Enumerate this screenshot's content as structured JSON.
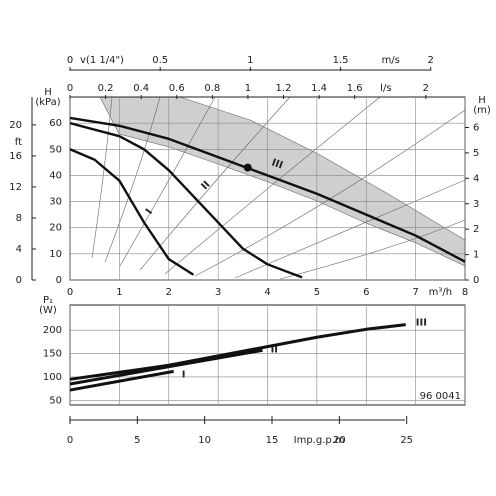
{
  "chart_data": [
    {
      "type": "line",
      "ylabel": "H",
      "yunit": "(kPa)",
      "y2label": "H",
      "y2unit": "(m)",
      "y3label": "ft",
      "xlabel": "m³/h",
      "xlim": [
        0,
        8
      ],
      "xticks": [
        0,
        1,
        2,
        3,
        4,
        5,
        6,
        7,
        8
      ],
      "ylim": [
        0,
        70
      ],
      "yticks": [
        0,
        10,
        20,
        30,
        40,
        50,
        60
      ],
      "y2lim": [
        0,
        7.2
      ],
      "y2ticks": [
        0,
        1,
        2,
        3,
        4,
        5,
        6
      ],
      "y3lim": [
        0,
        23.6
      ],
      "y3ticks": [
        0,
        4,
        8,
        12,
        16,
        20
      ],
      "top_axes": [
        {
          "label": "v(1 1/4\")",
          "unit": "m/s",
          "lim": [
            0,
            2.19
          ],
          "ticks": [
            0,
            0.5,
            1,
            1.5,
            2
          ]
        },
        {
          "unit": "l/s",
          "lim": [
            0,
            2.22
          ],
          "ticks": [
            0,
            0.2,
            0.4,
            0.6,
            0.8,
            1,
            1.2,
            1.4,
            1.6,
            2
          ]
        }
      ],
      "grid": true,
      "marker": {
        "x": 3.6,
        "y": 43
      },
      "series": [
        {
          "name": "I",
          "color": "#111111",
          "x": [
            0,
            0.5,
            1,
            1.5,
            2,
            2.5
          ],
          "values": [
            50,
            46,
            38,
            22,
            8,
            2
          ]
        },
        {
          "name": "II",
          "color": "#111111",
          "x": [
            0,
            1,
            1.5,
            2,
            2.5,
            3,
            3.5,
            4,
            4.7
          ],
          "values": [
            60,
            55,
            50,
            42,
            32,
            22,
            12,
            6,
            1
          ]
        },
        {
          "name": "III",
          "color": "#111111",
          "x": [
            0,
            1,
            2,
            3,
            4,
            5,
            6,
            7,
            8
          ],
          "values": [
            62,
            59,
            54,
            47,
            40,
            33,
            25,
            17,
            7
          ]
        }
      ]
    },
    {
      "type": "line",
      "ylabel": "P₁",
      "yunit": "(W)",
      "x2label": "Imp.g.p.m",
      "note": "96 0041",
      "xlim": [
        0,
        8
      ],
      "ylim": [
        40,
        254
      ],
      "yticks": [
        50,
        100,
        150,
        200
      ],
      "x2lim": [
        0,
        29.33
      ],
      "x2ticks": [
        0,
        5,
        10,
        15,
        20,
        25
      ],
      "grid": true,
      "series": [
        {
          "name": "I",
          "color": "#111111",
          "x": [
            0,
            2.1
          ],
          "values": [
            72,
            112
          ]
        },
        {
          "name": "II",
          "color": "#111111",
          "x": [
            0,
            3.9
          ],
          "values": [
            85,
            157
          ]
        },
        {
          "name": "III",
          "color": "#111111",
          "x": [
            0,
            2,
            4,
            5,
            6,
            6.8
          ],
          "values": [
            95,
            125,
            165,
            185,
            202,
            212
          ]
        }
      ]
    }
  ]
}
